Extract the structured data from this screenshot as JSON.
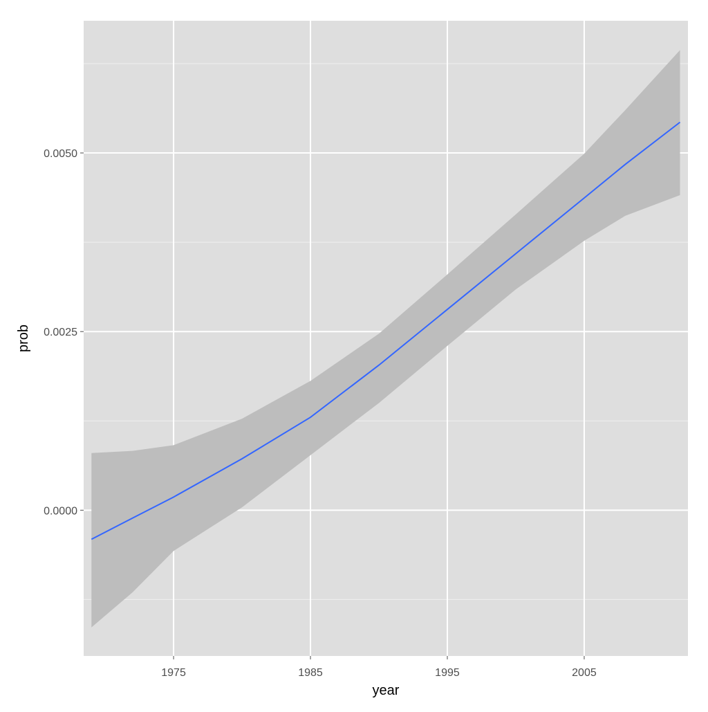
{
  "chart_data": {
    "type": "smooth",
    "x_label": "year",
    "y_label": "prob",
    "x": [
      1969,
      1972,
      1975,
      1980,
      1985,
      1990,
      1995,
      2000,
      2005,
      2008,
      2012
    ],
    "series": [
      {
        "color": "#3366ff",
        "band_color": "#bdbdbd",
        "values": [
          -0.000407,
          -0.00011,
          0.000184,
          0.00072,
          0.0013,
          0.00203,
          0.00281,
          0.00359,
          0.00437,
          0.00484,
          0.00543
        ],
        "lower": [
          -0.00164,
          -0.00115,
          -0.00057,
          4e-05,
          0.00077,
          0.0015,
          0.0023,
          0.00309,
          0.00377,
          0.00412,
          0.00441
        ],
        "upper": [
          0.0008,
          0.00083,
          0.00091,
          0.00128,
          0.00181,
          0.00247,
          0.0033,
          0.00414,
          0.00499,
          0.0056,
          0.00644
        ]
      }
    ],
    "xlim": [
      1968.43,
      2012.58
    ],
    "ylim": [
      -0.00204,
      0.00685
    ],
    "xticks": [
      1975,
      1985,
      1995,
      2005
    ],
    "yticks": [
      {
        "value": 0,
        "label": "0.0000"
      },
      {
        "value": 0.0025,
        "label": "0.0025"
      },
      {
        "value": 0.005,
        "label": "0.0050"
      }
    ],
    "minor_yticks": [
      -0.00125,
      0.00125,
      0.00375,
      0.00625
    ],
    "grid": true,
    "panel_color": "#dedede"
  }
}
